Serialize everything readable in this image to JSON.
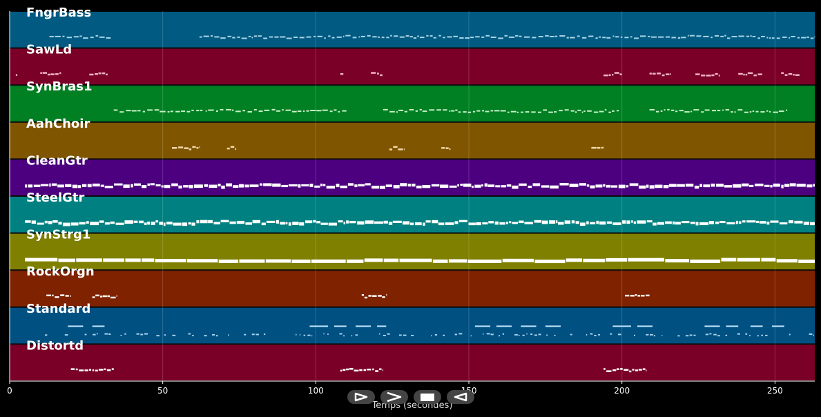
{
  "chart_data": {
    "type": "piano-roll",
    "xlabel": "Temps (secondes)",
    "xlim": [
      0,
      263
    ],
    "xticks": [
      0,
      50,
      100,
      150,
      200,
      250
    ],
    "grid": true,
    "tracks": [
      {
        "name": "FngrBass",
        "color": "#005a82",
        "note_color": "#aad4e6",
        "segments": [
          [
            13,
            33
          ],
          [
            62,
            263
          ]
        ],
        "density": "bar"
      },
      {
        "name": "SawLd",
        "color": "#7a0028",
        "note_color": "#f0b4c8",
        "segments": [
          [
            2,
            2.5
          ],
          [
            10,
            17
          ],
          [
            26,
            32
          ],
          [
            108,
            109
          ],
          [
            118,
            122
          ],
          [
            194,
            200
          ],
          [
            209,
            216
          ],
          [
            224,
            232
          ],
          [
            238,
            246
          ],
          [
            252,
            258
          ]
        ],
        "density": "phrase"
      },
      {
        "name": "SynBras1",
        "color": "#008022",
        "note_color": "#c8f0c8",
        "segments": [
          [
            34,
            63
          ],
          [
            64,
            110
          ],
          [
            122,
            199
          ],
          [
            209,
            254
          ]
        ],
        "density": "bar"
      },
      {
        "name": "AahChoir",
        "color": "#7f5500",
        "note_color": "#f2d8a8",
        "segments": [
          [
            53,
            62
          ],
          [
            71,
            74
          ],
          [
            124,
            129
          ],
          [
            141,
            144
          ],
          [
            190,
            194
          ]
        ],
        "density": "phrase"
      },
      {
        "name": "CleanGtr",
        "color": "#4c0080",
        "note_color": "#ffffff",
        "segments": [
          [
            5,
            263
          ]
        ],
        "density": "dense"
      },
      {
        "name": "SteelGtr",
        "color": "#008080",
        "note_color": "#ffffff",
        "segments": [
          [
            5,
            263
          ]
        ],
        "density": "dense"
      },
      {
        "name": "SynStrg1",
        "color": "#7f7f00",
        "note_color": "#ffffff",
        "segments": [
          [
            5,
            263
          ]
        ],
        "density": "thick"
      },
      {
        "name": "RockOrgn",
        "color": "#7f2200",
        "note_color": "#ffffff",
        "segments": [
          [
            12,
            20
          ],
          [
            27,
            35
          ],
          [
            115,
            123
          ],
          [
            201,
            209
          ]
        ],
        "density": "phrase"
      },
      {
        "name": "Standard",
        "color": "#005082",
        "note_color": "#a8d2ec",
        "segments": [
          [
            0,
            263
          ]
        ],
        "density": "drum"
      },
      {
        "name": "Distortd",
        "color": "#7a0028",
        "note_color": "#ffffff",
        "segments": [
          [
            20,
            34
          ],
          [
            108,
            122
          ],
          [
            194,
            208
          ]
        ],
        "density": "phrase"
      }
    ]
  },
  "controls": [
    {
      "name": "play-button",
      "icon": "play-icon"
    },
    {
      "name": "forward-button",
      "icon": "forward-icon"
    },
    {
      "name": "stop-button",
      "icon": "stop-icon"
    },
    {
      "name": "rewind-button",
      "icon": "rewind-icon"
    }
  ]
}
